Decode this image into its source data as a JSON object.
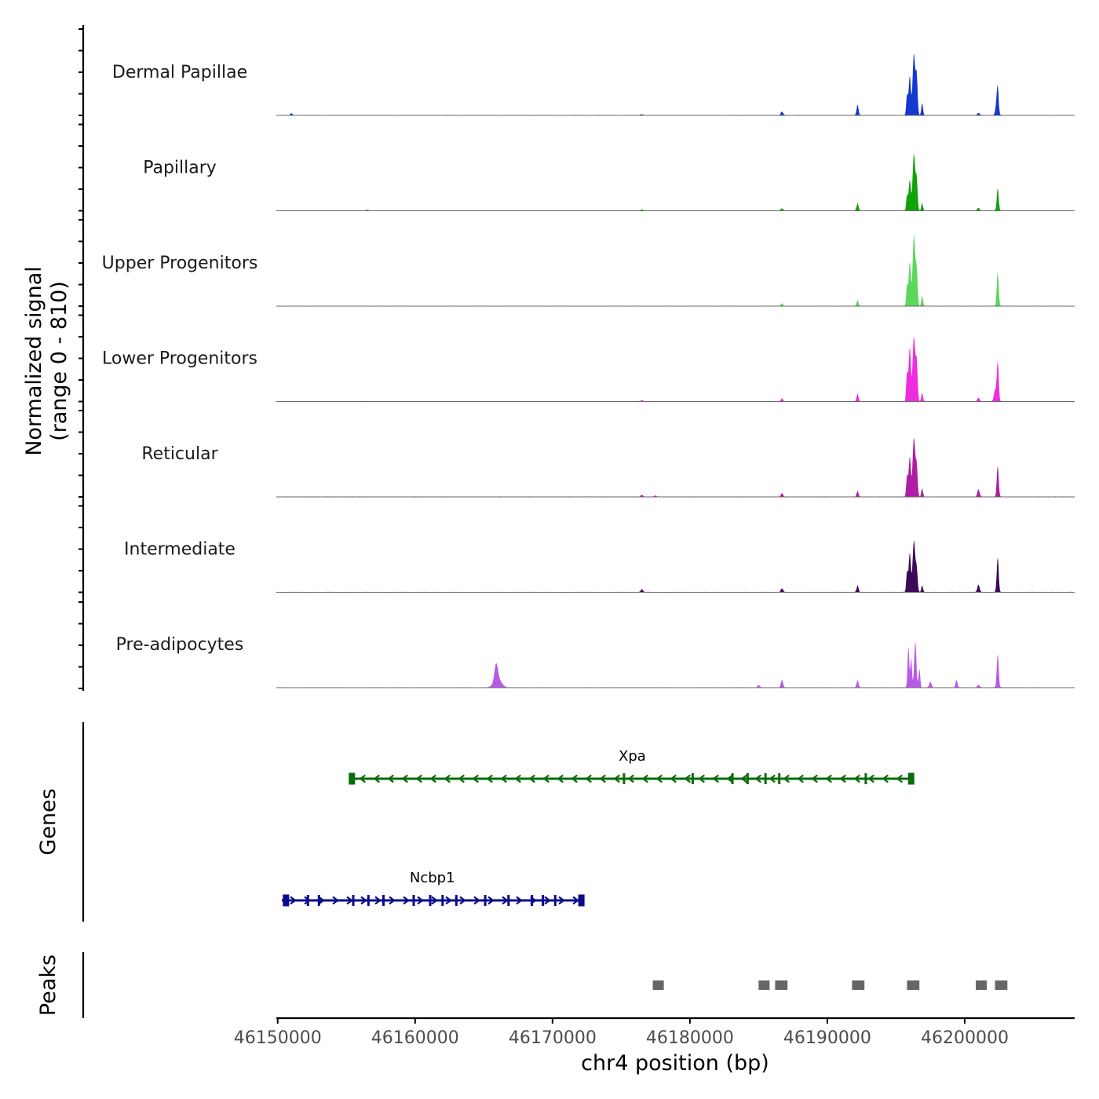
{
  "chart_data": {
    "type": "area",
    "title": "",
    "xlabel": "chr4 position (bp)",
    "ylabel": [
      "Normalized signal",
      "(range 0 - 810)"
    ],
    "xlim": [
      46149900,
      46208000
    ],
    "ylim": [
      0,
      810
    ],
    "x_ticks": [
      46150000,
      46160000,
      46170000,
      46180000,
      46190000,
      46200000
    ],
    "x_tick_labels": [
      "46150000",
      "46160000",
      "46170000",
      "46180000",
      "46190000",
      "46200000"
    ],
    "tracks": [
      {
        "name": "Dermal Papillae",
        "color": "#1538cf",
        "peaks": [
          [
            46151000,
            20,
            80
          ],
          [
            46176500,
            10,
            80
          ],
          [
            46186700,
            40,
            80
          ],
          [
            46192200,
            110,
            70
          ],
          [
            46195800,
            210,
            60
          ],
          [
            46196000,
            420,
            80
          ],
          [
            46196300,
            660,
            90
          ],
          [
            46196500,
            420,
            70
          ],
          [
            46196900,
            130,
            60
          ],
          [
            46201000,
            25,
            80
          ],
          [
            46202300,
            90,
            80
          ],
          [
            46202400,
            280,
            70
          ]
        ]
      },
      {
        "name": "Papillary",
        "color": "#12a10a",
        "peaks": [
          [
            46156500,
            10,
            80
          ],
          [
            46176500,
            12,
            80
          ],
          [
            46186700,
            25,
            80
          ],
          [
            46192200,
            80,
            70
          ],
          [
            46195800,
            160,
            60
          ],
          [
            46196000,
            330,
            80
          ],
          [
            46196300,
            610,
            90
          ],
          [
            46196500,
            330,
            70
          ],
          [
            46196900,
            80,
            60
          ],
          [
            46201000,
            30,
            80
          ],
          [
            46202400,
            240,
            70
          ]
        ]
      },
      {
        "name": "Upper Progenitors",
        "color": "#5ed65e",
        "peaks": [
          [
            46186700,
            25,
            80
          ],
          [
            46192200,
            60,
            70
          ],
          [
            46195800,
            210,
            60
          ],
          [
            46196000,
            470,
            80
          ],
          [
            46196300,
            760,
            90
          ],
          [
            46196500,
            380,
            70
          ],
          [
            46196900,
            110,
            60
          ],
          [
            46202400,
            360,
            70
          ]
        ]
      },
      {
        "name": "Lower Progenitors",
        "color": "#ee2ce0",
        "peaks": [
          [
            46176500,
            15,
            80
          ],
          [
            46186700,
            30,
            80
          ],
          [
            46192200,
            80,
            70
          ],
          [
            46195800,
            300,
            60
          ],
          [
            46196000,
            580,
            80
          ],
          [
            46196300,
            700,
            90
          ],
          [
            46196500,
            420,
            70
          ],
          [
            46196900,
            90,
            60
          ],
          [
            46201000,
            40,
            80
          ],
          [
            46202200,
            120,
            80
          ],
          [
            46202400,
            430,
            70
          ]
        ]
      },
      {
        "name": "Reticular",
        "color": "#b01ca4",
        "peaks": [
          [
            46176500,
            18,
            80
          ],
          [
            46177500,
            12,
            80
          ],
          [
            46186700,
            35,
            80
          ],
          [
            46192200,
            60,
            70
          ],
          [
            46195800,
            220,
            60
          ],
          [
            46196000,
            430,
            80
          ],
          [
            46196300,
            640,
            90
          ],
          [
            46196500,
            330,
            70
          ],
          [
            46196900,
            90,
            60
          ],
          [
            46201000,
            80,
            80
          ],
          [
            46202400,
            330,
            70
          ]
        ]
      },
      {
        "name": "Intermediate",
        "color": "#3c0a58",
        "peaks": [
          [
            46176500,
            30,
            80
          ],
          [
            46186700,
            40,
            80
          ],
          [
            46192200,
            70,
            70
          ],
          [
            46195800,
            210,
            60
          ],
          [
            46196000,
            420,
            80
          ],
          [
            46196300,
            560,
            90
          ],
          [
            46196500,
            250,
            70
          ],
          [
            46196900,
            70,
            60
          ],
          [
            46201000,
            80,
            80
          ],
          [
            46202400,
            370,
            70
          ]
        ]
      },
      {
        "name": "Pre-adipocytes",
        "color": "#b85ae8",
        "peaks": [
          [
            46165900,
            170,
            120
          ],
          [
            46166000,
            100,
            260
          ],
          [
            46185000,
            25,
            80
          ],
          [
            46186700,
            80,
            80
          ],
          [
            46192200,
            80,
            70
          ],
          [
            46195900,
            440,
            60
          ],
          [
            46196100,
            320,
            60
          ],
          [
            46196400,
            490,
            80
          ],
          [
            46196700,
            200,
            60
          ],
          [
            46197500,
            60,
            80
          ],
          [
            46199400,
            80,
            70
          ],
          [
            46201000,
            30,
            80
          ],
          [
            46202400,
            360,
            70
          ]
        ]
      }
    ],
    "genes": {
      "label": "Genes",
      "items": [
        {
          "name": "Xpa",
          "strand": "-",
          "start": 46155400,
          "end": 46196200,
          "color": "#0a6b0a",
          "exons": [
            46155400,
            46175200,
            46180200,
            46183100,
            46184200,
            46185500,
            46186500,
            46192800,
            46196100
          ]
        },
        {
          "name": "Ncbp1",
          "strand": "+",
          "start": 46150300,
          "end": 46172200,
          "color": "#0a0a8a",
          "exons": [
            46150600,
            46152200,
            46153000,
            46155500,
            46156600,
            46157700,
            46159900,
            46161100,
            46162000,
            46163000,
            46165100,
            46166800,
            46168500,
            46169300,
            46170200,
            46172100
          ]
        }
      ]
    },
    "peaks_track": {
      "label": "Peaks",
      "color": "#666666",
      "regions": [
        [
          46177300,
          46178100
        ],
        [
          46185000,
          46185800
        ],
        [
          46186200,
          46187100
        ],
        [
          46191800,
          46192700
        ],
        [
          46195800,
          46196700
        ],
        [
          46200800,
          46201600
        ],
        [
          46202200,
          46203100
        ]
      ]
    }
  }
}
